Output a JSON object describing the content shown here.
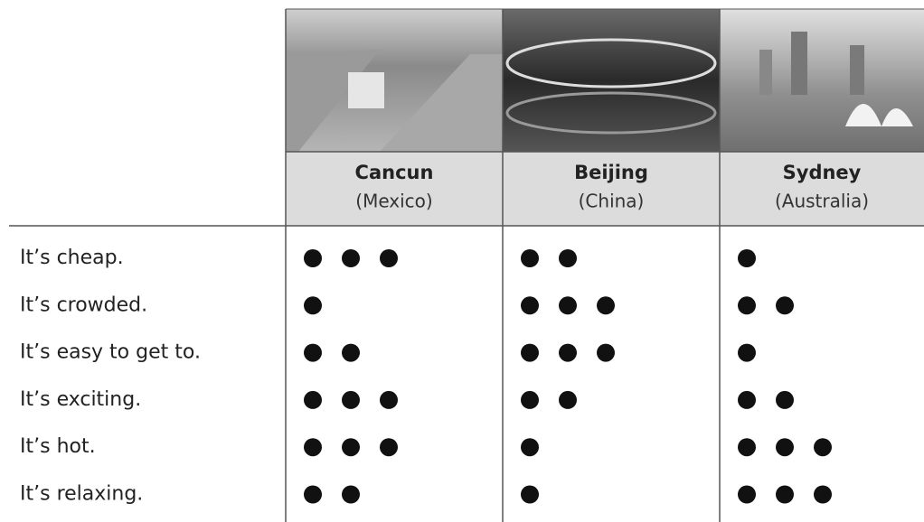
{
  "table": {
    "columns": [
      {
        "city": "Cancun",
        "country": "(Mexico)"
      },
      {
        "city": "Beijing",
        "country": "(China)"
      },
      {
        "city": "Sydney",
        "country": "(Australia)"
      }
    ],
    "rows": [
      {
        "label": "It’s cheap.",
        "ratings": [
          3,
          2,
          1
        ]
      },
      {
        "label": "It’s crowded.",
        "ratings": [
          1,
          3,
          2
        ]
      },
      {
        "label": "It’s easy to get to.",
        "ratings": [
          2,
          3,
          1
        ]
      },
      {
        "label": "It’s exciting.",
        "ratings": [
          3,
          2,
          2
        ]
      },
      {
        "label": "It’s hot.",
        "ratings": [
          3,
          1,
          3
        ]
      },
      {
        "label": "It’s relaxing.",
        "ratings": [
          2,
          1,
          3
        ]
      }
    ]
  }
}
